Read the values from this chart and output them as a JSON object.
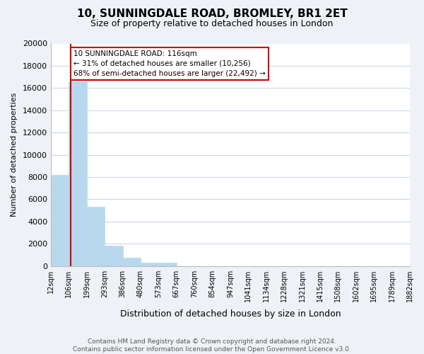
{
  "title": "10, SUNNINGDALE ROAD, BROMLEY, BR1 2ET",
  "subtitle": "Size of property relative to detached houses in London",
  "xlabel": "Distribution of detached houses by size in London",
  "ylabel": "Number of detached properties",
  "bar_values": [
    8200,
    16600,
    5300,
    1800,
    750,
    300,
    280,
    0,
    0,
    0,
    0,
    0,
    0,
    0,
    0,
    0,
    0,
    0,
    0,
    0
  ],
  "tick_labels": [
    "12sqm",
    "106sqm",
    "199sqm",
    "293sqm",
    "386sqm",
    "480sqm",
    "573sqm",
    "667sqm",
    "760sqm",
    "854sqm",
    "947sqm",
    "1041sqm",
    "1134sqm",
    "1228sqm",
    "1321sqm",
    "1415sqm",
    "1508sqm",
    "1602sqm",
    "1695sqm",
    "1789sqm",
    "1882sqm"
  ],
  "bar_color": "#b8d8ee",
  "bar_edge_color": "#b8d8ee",
  "property_line_color": "#cc0000",
  "property_line_x": 1.1,
  "annotation_text": "10 SUNNINGDALE ROAD: 116sqm\n← 31% of detached houses are smaller (10,256)\n68% of semi-detached houses are larger (22,492) →",
  "annotation_box_color": "#ffffff",
  "annotation_box_edge_color": "#cc0000",
  "ylim": [
    0,
    20000
  ],
  "yticks": [
    0,
    2000,
    4000,
    6000,
    8000,
    10000,
    12000,
    14000,
    16000,
    18000,
    20000
  ],
  "footer_line1": "Contains HM Land Registry data © Crown copyright and database right 2024.",
  "footer_line2": "Contains public sector information licensed under the Open Government Licence v3.0.",
  "background_color": "#eef2f6",
  "plot_background_color": "#ffffff",
  "grid_color": "#ccd8e4"
}
